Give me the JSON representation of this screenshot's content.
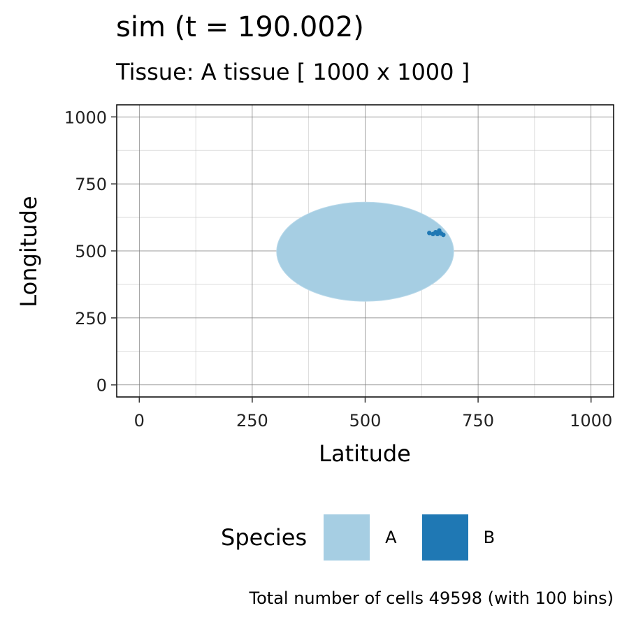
{
  "chart_data": {
    "type": "heatmap",
    "title": "sim (t = 190.002)",
    "subtitle": "Tissue: A tissue [ 1000 x 1000 ]",
    "xlabel": "Latitude",
    "ylabel": "Longitude",
    "xlim": [
      -50,
      1050
    ],
    "ylim": [
      -45,
      1045
    ],
    "x_ticks": [
      0,
      250,
      500,
      750,
      1000
    ],
    "y_ticks": [
      0,
      250,
      500,
      750,
      1000
    ],
    "x_tick_labels": [
      "0",
      "250",
      "500",
      "750",
      "1000"
    ],
    "y_tick_labels": [
      "0",
      "250",
      "500",
      "750",
      "1000"
    ],
    "grid": true,
    "legend": {
      "position": "bottom",
      "title": "Species",
      "entries": [
        {
          "label": "A",
          "color": "#a6cee3"
        },
        {
          "label": "B",
          "color": "#1f78b4"
        }
      ]
    },
    "regions": [
      {
        "species": "A",
        "shape": "ellipse",
        "center": [
          500,
          497
        ],
        "radius_x": 196,
        "radius_y": 185
      },
      {
        "species": "B",
        "shape": "cluster",
        "points": [
          [
            642,
            567
          ],
          [
            650,
            563
          ],
          [
            656,
            570
          ],
          [
            660,
            563
          ],
          [
            664,
            576
          ],
          [
            668,
            565
          ],
          [
            673,
            560
          ]
        ]
      }
    ],
    "caption": "Total number of cells 49598 (with 100 bins)"
  }
}
